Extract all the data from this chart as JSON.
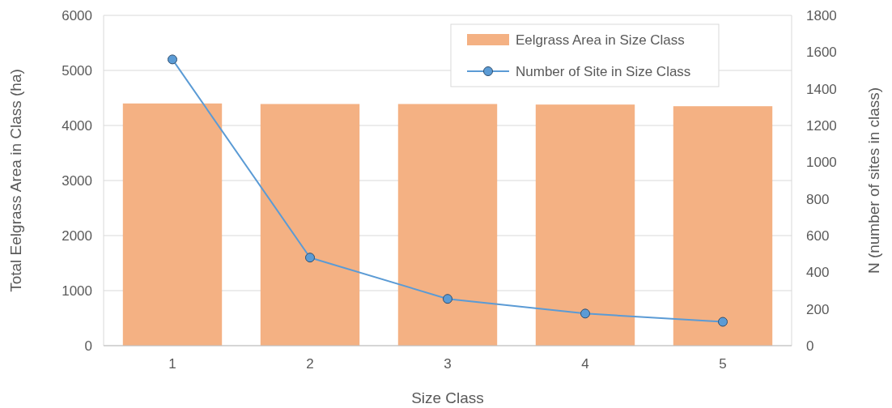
{
  "chart_data": {
    "type": "bar",
    "xlabel": "Size Class",
    "ylabel": "Total Eelgrass Area in Class (ha)",
    "y2label": "N (number of sites in class)",
    "categories": [
      "1",
      "2",
      "3",
      "4",
      "5"
    ],
    "series": [
      {
        "name": "Eelgrass Area in Size Class",
        "color": "#f4b183",
        "values": [
          4400,
          4390,
          4390,
          4380,
          4350
        ]
      },
      {
        "name": "Number of Site in Size Class",
        "type": "line",
        "axis": "y2",
        "color": "#5b9bd5",
        "marker": "circle",
        "values": [
          1560,
          480,
          255,
          175,
          130
        ]
      }
    ],
    "ylim": [
      0,
      6000
    ],
    "yticks": [
      0,
      1000,
      2000,
      3000,
      4000,
      5000,
      6000
    ],
    "y2lim": [
      0,
      1800
    ],
    "y2ticks": [
      0,
      200,
      400,
      600,
      800,
      1000,
      1200,
      1400,
      1600,
      1800
    ],
    "grid": "y",
    "legend": "top right"
  }
}
